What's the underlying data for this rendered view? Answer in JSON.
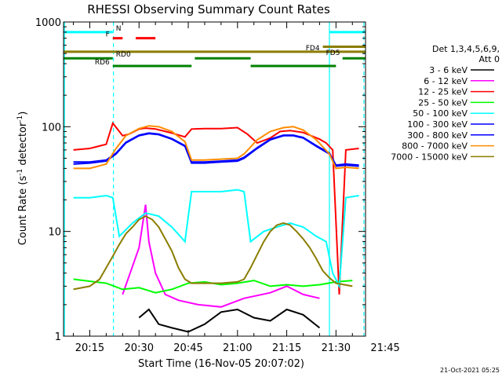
{
  "chart_data": {
    "type": "line",
    "title": "RHESSI Observing Summary Count Rates",
    "xlabel": "Start Time (16-Nov-05 20:07:02)",
    "ylabel": "Count Rate (s^-1 detector^-1)",
    "ylabel_parts": {
      "main": "Count Rate (s",
      "sup": "-1",
      "mid": " detector",
      "sup2": "-1",
      "end": ")"
    },
    "yscale": "log",
    "ylim": [
      1,
      1000
    ],
    "xlim": [
      7,
      99
    ],
    "x_unit": "minutes after 20:00 UT on 16-Nov-05",
    "y_ticks": [
      {
        "value": 1,
        "label": "1"
      },
      {
        "value": 10,
        "label": "10"
      },
      {
        "value": 100,
        "label": "100"
      },
      {
        "value": 1000,
        "label": "1000"
      }
    ],
    "x_ticks": [
      {
        "value": 15,
        "label": "20:15"
      },
      {
        "value": 30,
        "label": "20:30"
      },
      {
        "value": 45,
        "label": "20:45"
      },
      {
        "value": 60,
        "label": "21:00"
      },
      {
        "value": 75,
        "label": "21:15"
      },
      {
        "value": 90,
        "label": "21:30"
      },
      {
        "value": 105,
        "label": "21:45"
      }
    ],
    "legend": {
      "header": [
        "Det 1,3,4,5,6,9,",
        "Att 0"
      ],
      "placement": "right"
    },
    "footer_date": "21-Oct-2021 05:25",
    "series": [
      {
        "name": "3 - 6 keV",
        "color": "#000000",
        "points": [
          [
            30,
            1.5
          ],
          [
            33,
            1.8
          ],
          [
            36,
            1.3
          ],
          [
            40,
            1.2
          ],
          [
            45,
            1.1
          ],
          [
            50,
            1.3
          ],
          [
            55,
            1.7
          ],
          [
            60,
            1.8
          ],
          [
            65,
            1.5
          ],
          [
            70,
            1.4
          ],
          [
            75,
            1.8
          ],
          [
            80,
            1.6
          ],
          [
            85,
            1.2
          ]
        ]
      },
      {
        "name": "6 - 12 keV",
        "color": "#ff00ff",
        "points": [
          [
            25,
            2.5
          ],
          [
            30,
            7
          ],
          [
            32,
            18
          ],
          [
            33,
            8
          ],
          [
            35,
            4
          ],
          [
            38,
            2.5
          ],
          [
            42,
            2.2
          ],
          [
            48,
            2.0
          ],
          [
            55,
            1.9
          ],
          [
            62,
            2.3
          ],
          [
            70,
            2.6
          ],
          [
            75,
            3.0
          ],
          [
            80,
            2.5
          ],
          [
            85,
            2.3
          ]
        ]
      },
      {
        "name": "12 - 25 keV",
        "color": "#ff0000",
        "points": [
          [
            10,
            60
          ],
          [
            15,
            62
          ],
          [
            20,
            68
          ],
          [
            22,
            108
          ],
          [
            25,
            82
          ],
          [
            27,
            85
          ],
          [
            30,
            95
          ],
          [
            32,
            97
          ],
          [
            35,
            95
          ],
          [
            40,
            87
          ],
          [
            44,
            80
          ],
          [
            46,
            95
          ],
          [
            50,
            96
          ],
          [
            55,
            96
          ],
          [
            60,
            98
          ],
          [
            63,
            85
          ],
          [
            66,
            70
          ],
          [
            70,
            78
          ],
          [
            73,
            90
          ],
          [
            76,
            92
          ],
          [
            80,
            88
          ],
          [
            85,
            76
          ],
          [
            87,
            70
          ],
          [
            89,
            60
          ],
          [
            91,
            2.5
          ],
          [
            93,
            60
          ],
          [
            97,
            62
          ],
          [
            100,
            62
          ]
        ]
      },
      {
        "name": "25 - 50 keV",
        "color": "#00ff00",
        "points": [
          [
            10,
            3.5
          ],
          [
            20,
            3.2
          ],
          [
            25,
            2.8
          ],
          [
            30,
            2.9
          ],
          [
            35,
            2.6
          ],
          [
            40,
            2.8
          ],
          [
            45,
            3.2
          ],
          [
            50,
            3.3
          ],
          [
            55,
            3.1
          ],
          [
            60,
            3.2
          ],
          [
            65,
            3.4
          ],
          [
            70,
            3.0
          ],
          [
            75,
            3.1
          ],
          [
            80,
            3.0
          ],
          [
            85,
            3.1
          ],
          [
            90,
            3.3
          ],
          [
            95,
            3.4
          ],
          [
            100,
            3.5
          ]
        ]
      },
      {
        "name": "50 - 100 keV",
        "color": "#00ffff",
        "points": [
          [
            10,
            21
          ],
          [
            15,
            21
          ],
          [
            20,
            22
          ],
          [
            22,
            21
          ],
          [
            24,
            9
          ],
          [
            28,
            12
          ],
          [
            32,
            15
          ],
          [
            36,
            14
          ],
          [
            40,
            11
          ],
          [
            44,
            8
          ],
          [
            46,
            24
          ],
          [
            50,
            24
          ],
          [
            55,
            24
          ],
          [
            60,
            25
          ],
          [
            62,
            24
          ],
          [
            64,
            8
          ],
          [
            68,
            10
          ],
          [
            72,
            11
          ],
          [
            76,
            12
          ],
          [
            80,
            11
          ],
          [
            84,
            9
          ],
          [
            87,
            8
          ],
          [
            89,
            4
          ],
          [
            91,
            3
          ],
          [
            93,
            21
          ],
          [
            97,
            22
          ],
          [
            100,
            22
          ]
        ]
      },
      {
        "name": "100 - 300 keV",
        "color": "#0000ff",
        "points": [
          [
            10,
            44
          ],
          [
            15,
            45
          ],
          [
            20,
            47
          ],
          [
            23,
            55
          ],
          [
            26,
            70
          ],
          [
            30,
            82
          ],
          [
            33,
            86
          ],
          [
            36,
            84
          ],
          [
            40,
            76
          ],
          [
            44,
            65
          ],
          [
            46,
            45
          ],
          [
            50,
            45
          ],
          [
            55,
            46
          ],
          [
            60,
            47
          ],
          [
            62,
            50
          ],
          [
            66,
            62
          ],
          [
            70,
            75
          ],
          [
            74,
            82
          ],
          [
            77,
            82
          ],
          [
            80,
            78
          ],
          [
            84,
            65
          ],
          [
            88,
            55
          ],
          [
            90,
            42
          ],
          [
            93,
            43
          ],
          [
            97,
            42
          ],
          [
            100,
            42
          ]
        ]
      },
      {
        "name": "300 - 800 keV",
        "color": "#0000ff",
        "points": [
          [
            10,
            46
          ],
          [
            15,
            46
          ],
          [
            20,
            48
          ],
          [
            23,
            56
          ],
          [
            26,
            71
          ],
          [
            30,
            83
          ],
          [
            33,
            87
          ],
          [
            36,
            85
          ],
          [
            40,
            77
          ],
          [
            44,
            66
          ],
          [
            46,
            46
          ],
          [
            50,
            46
          ],
          [
            55,
            47
          ],
          [
            60,
            48
          ],
          [
            62,
            51
          ],
          [
            66,
            63
          ],
          [
            70,
            76
          ],
          [
            74,
            83
          ],
          [
            77,
            83
          ],
          [
            80,
            79
          ],
          [
            84,
            66
          ],
          [
            88,
            56
          ],
          [
            90,
            43
          ],
          [
            93,
            44
          ],
          [
            97,
            43
          ],
          [
            100,
            43
          ]
        ]
      },
      {
        "name": "800 - 7000 keV",
        "color": "#ff8c00",
        "points": [
          [
            10,
            40
          ],
          [
            15,
            40
          ],
          [
            20,
            44
          ],
          [
            23,
            62
          ],
          [
            26,
            82
          ],
          [
            30,
            96
          ],
          [
            33,
            102
          ],
          [
            36,
            100
          ],
          [
            40,
            90
          ],
          [
            44,
            72
          ],
          [
            46,
            48
          ],
          [
            50,
            48
          ],
          [
            55,
            49
          ],
          [
            60,
            50
          ],
          [
            62,
            55
          ],
          [
            66,
            75
          ],
          [
            70,
            90
          ],
          [
            74,
            98
          ],
          [
            77,
            100
          ],
          [
            80,
            93
          ],
          [
            84,
            75
          ],
          [
            88,
            55
          ],
          [
            90,
            40
          ],
          [
            93,
            41
          ],
          [
            97,
            40
          ],
          [
            100,
            40
          ]
        ]
      },
      {
        "name": "7000 - 15000 keV",
        "color": "#8b7d00",
        "points": [
          [
            10,
            2.8
          ],
          [
            15,
            3.0
          ],
          [
            18,
            3.5
          ],
          [
            20,
            4.5
          ],
          [
            22,
            5.8
          ],
          [
            24,
            7.5
          ],
          [
            26,
            9.5
          ],
          [
            28,
            11
          ],
          [
            30,
            13
          ],
          [
            32,
            14
          ],
          [
            34,
            13
          ],
          [
            36,
            11
          ],
          [
            38,
            8.5
          ],
          [
            40,
            6.5
          ],
          [
            42,
            4.5
          ],
          [
            44,
            3.5
          ],
          [
            46,
            3.2
          ],
          [
            50,
            3.2
          ],
          [
            55,
            3.2
          ],
          [
            60,
            3.3
          ],
          [
            62,
            3.5
          ],
          [
            64,
            4.5
          ],
          [
            66,
            6
          ],
          [
            68,
            8
          ],
          [
            70,
            10
          ],
          [
            72,
            11.5
          ],
          [
            74,
            12
          ],
          [
            76,
            11.5
          ],
          [
            78,
            10
          ],
          [
            80,
            8.5
          ],
          [
            82,
            7
          ],
          [
            84,
            5.5
          ],
          [
            86,
            4.2
          ],
          [
            88,
            3.6
          ],
          [
            90,
            3.2
          ],
          [
            95,
            3.0
          ],
          [
            100,
            2.9
          ]
        ]
      }
    ],
    "annotations": [
      {
        "label": "N",
        "color": "#00ffff",
        "start": 7,
        "end": 22,
        "level": 800,
        "label_at": 22,
        "label_side": "right"
      },
      {
        "label": "N",
        "color": "#00ffff",
        "start": 88,
        "end": 99,
        "level": 800
      },
      {
        "label": "F",
        "color": "#ff0000",
        "start": 22,
        "end": 25,
        "level": 700,
        "label_at": 22,
        "label_side": "left"
      },
      {
        "label": "F",
        "color": "#ff0000",
        "start": 29,
        "end": 35,
        "level": 700
      },
      {
        "label": "FD4",
        "color": "#8b7d00",
        "start": 7,
        "end": 99,
        "level": 520,
        "label_at": 86,
        "label_side": "left"
      },
      {
        "label": "FD5",
        "color": "#8b7d00",
        "start": 86,
        "end": 99,
        "level": 580,
        "label_at": 86,
        "label_side": "right",
        "label_level": 500
      },
      {
        "label": "RD0",
        "color": "#008000",
        "start": 7,
        "end": 22,
        "level": 450,
        "label_at": 22,
        "label_side": "right"
      },
      {
        "label": "RD0",
        "color": "#008000",
        "start": 47,
        "end": 64,
        "level": 450
      },
      {
        "label": "RD0",
        "color": "#008000",
        "start": 92,
        "end": 99,
        "level": 450
      },
      {
        "label": "RD6",
        "color": "#008000",
        "start": 22,
        "end": 46,
        "level": 380,
        "label_at": 22,
        "label_side": "left"
      },
      {
        "label": "RD6",
        "color": "#008000",
        "start": 64,
        "end": 90,
        "level": 380
      }
    ],
    "vertical_markers": [
      {
        "x": 7.3,
        "color": "#00ffff",
        "style": "solid"
      },
      {
        "x": 22.2,
        "color": "#00ffff",
        "style": "dashed"
      },
      {
        "x": 88.0,
        "color": "#00ffff",
        "style": "solid"
      },
      {
        "x": 98.5,
        "color": "#00ffff",
        "style": "dashed"
      }
    ]
  }
}
